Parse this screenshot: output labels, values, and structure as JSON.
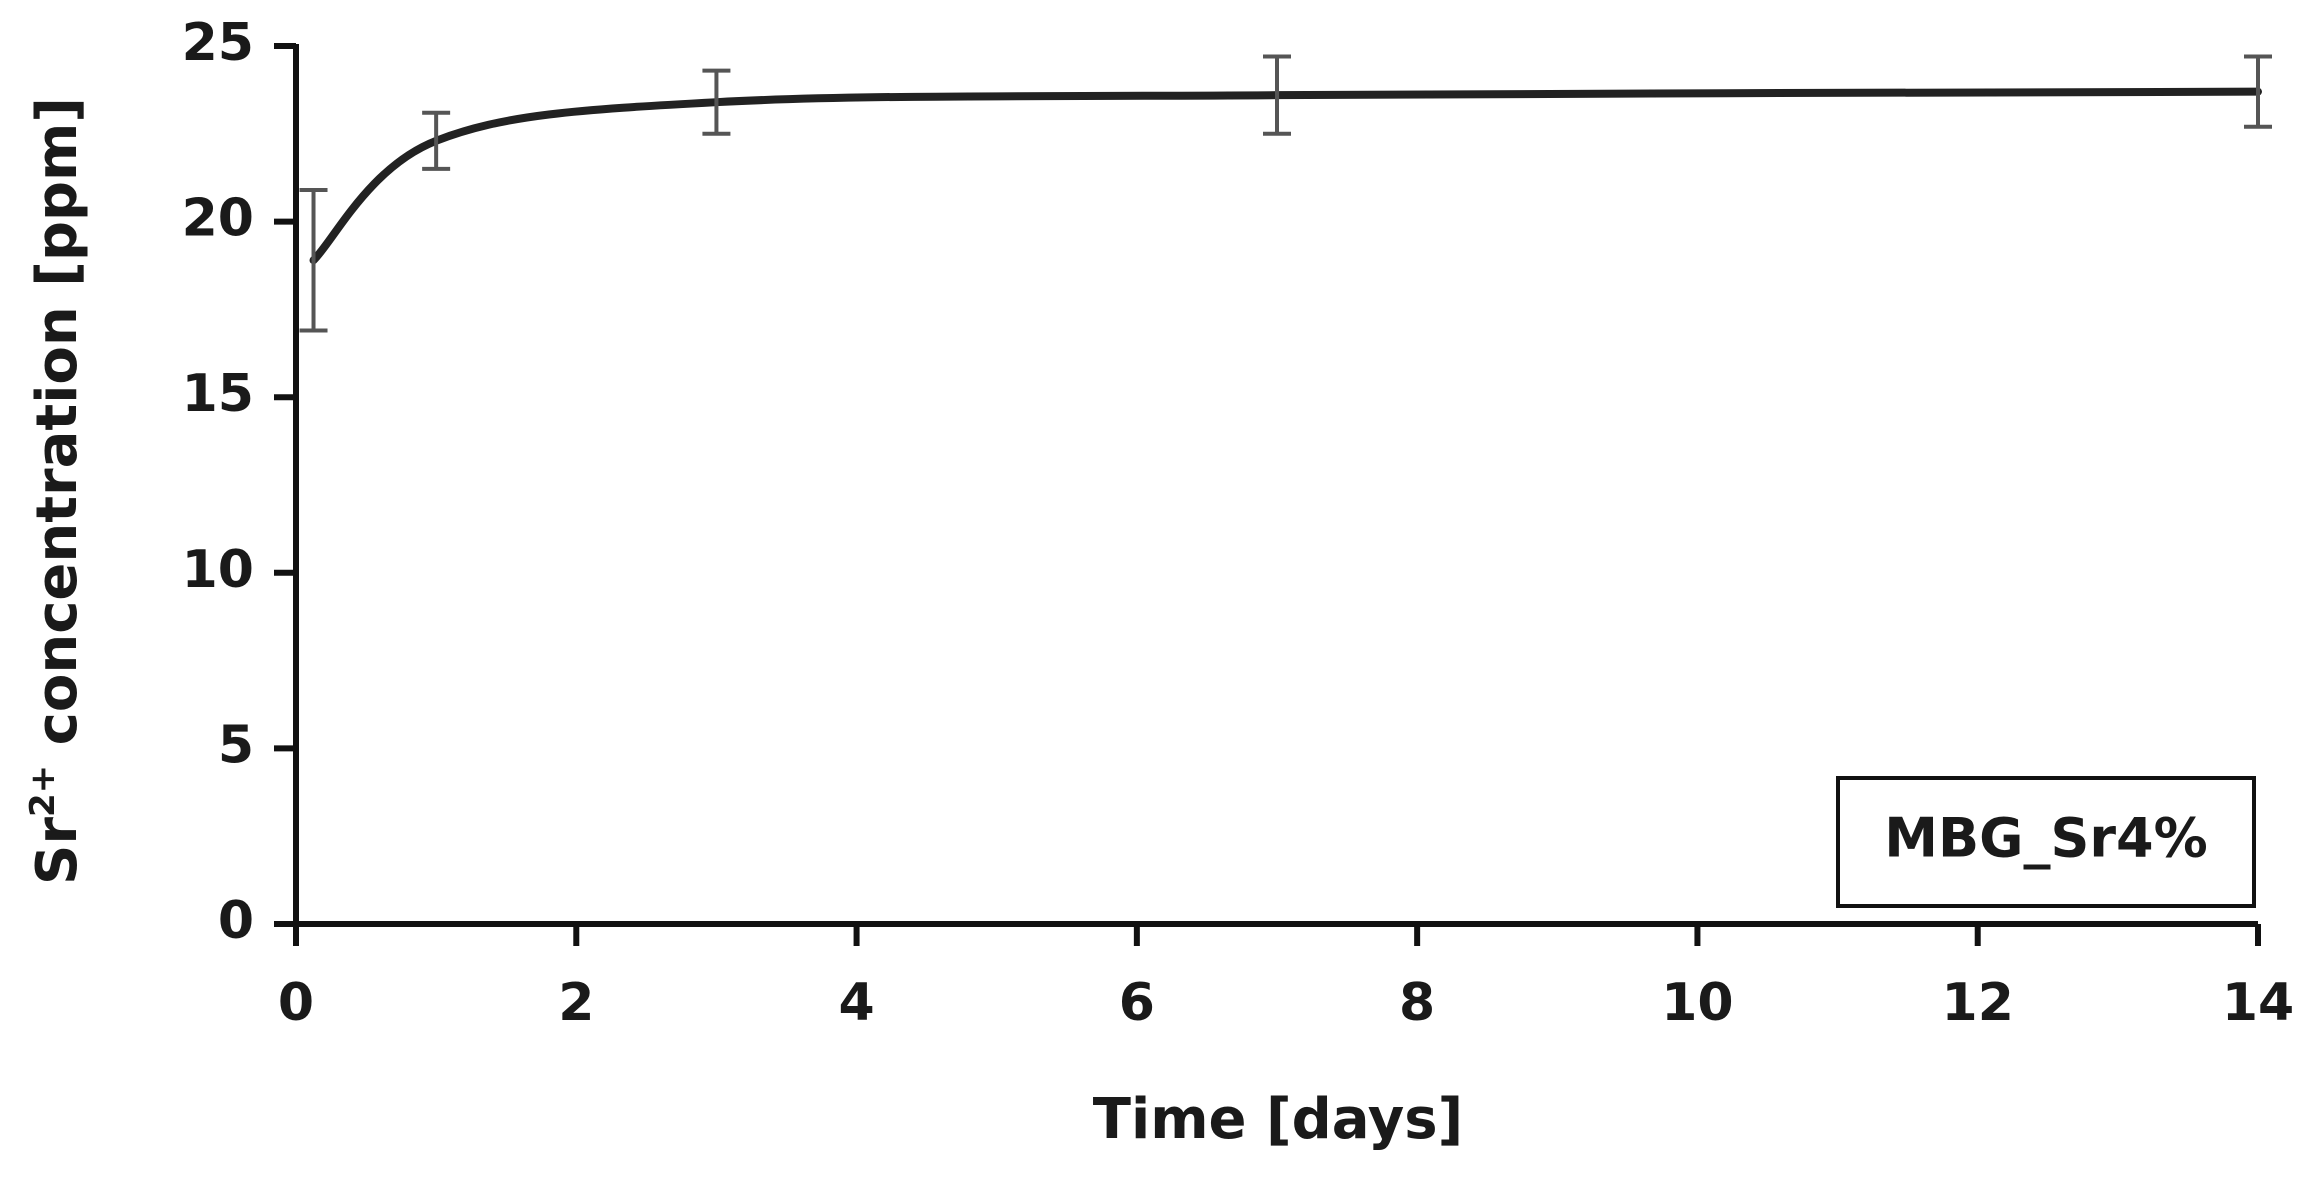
{
  "chart_data": {
    "type": "line",
    "title": "",
    "xlabel": "Time [days]",
    "ylabel": {
      "prefix": "Sr",
      "superscript": "2+",
      "suffix": " concentration [ppm]"
    },
    "xlim": [
      0,
      14
    ],
    "ylim": [
      0,
      25
    ],
    "xticks": [
      0,
      2,
      4,
      6,
      8,
      10,
      12,
      14
    ],
    "yticks": [
      0,
      5,
      10,
      15,
      20,
      25
    ],
    "grid": false,
    "legend": {
      "position": "bottom-right",
      "label": "MBG_Sr4%"
    },
    "series": [
      {
        "name": "MBG_Sr4%",
        "color": "#222222",
        "smooth": true,
        "x": [
          0.125,
          1,
          3,
          7,
          14
        ],
        "y": [
          18.9,
          22.3,
          23.4,
          23.6,
          23.7
        ],
        "error": [
          2.0,
          0.8,
          0.9,
          1.1,
          1.0
        ]
      }
    ]
  }
}
